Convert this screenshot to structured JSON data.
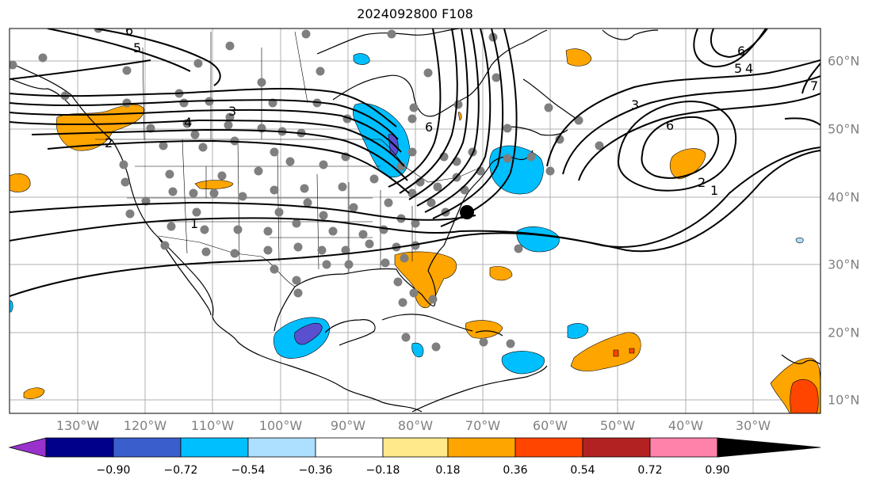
{
  "title": "2024092800 F108",
  "lon_labels": [
    "130°W",
    "120°W",
    "110°W",
    "100°W",
    "90°W",
    "80°W",
    "70°W",
    "60°W",
    "50°W",
    "40°W",
    "30°W"
  ],
  "lat_labels": [
    "60°N",
    "50°N",
    "40°N",
    "30°N",
    "20°N",
    "10°N"
  ],
  "colorbar": {
    "ticks": [
      "−0.90",
      "−0.72",
      "−0.54",
      "−0.36",
      "−0.18",
      "0.18",
      "0.36",
      "0.54",
      "0.72",
      "0.90"
    ],
    "colors": [
      "#9932CC",
      "#00008B",
      "#3A5FCD",
      "#00BFFF",
      "#ADDFFF",
      "#FFFFFF",
      "#FFE98A",
      "#FFA500",
      "#FF4500",
      "#B22222",
      "#FF82AB"
    ]
  },
  "contour_labels": [
    "5",
    "4",
    "3",
    "2",
    "1",
    "6",
    "6",
    "5",
    "4",
    "3",
    "6",
    "2",
    "1",
    "6",
    "7"
  ]
}
